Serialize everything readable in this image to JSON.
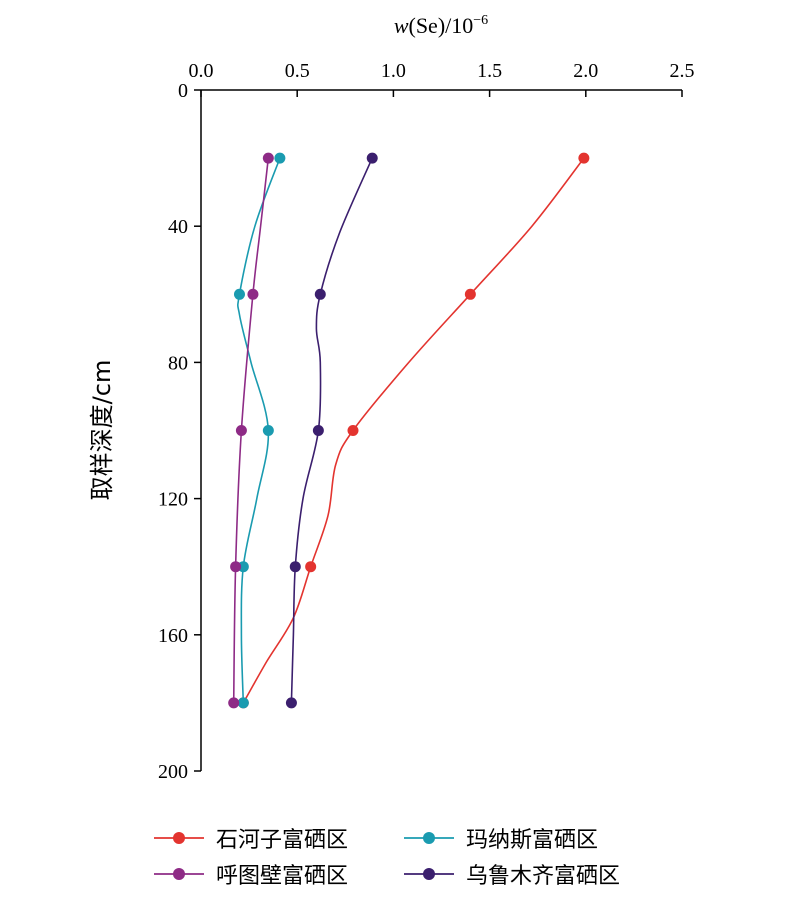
{
  "chart_data": {
    "type": "line",
    "orientation": "depth-profile",
    "title": "",
    "xlabel_main": "w",
    "xlabel_rest": "(Se)/10",
    "xlabel_sup": "−6",
    "ylabel": "取样深度/cm",
    "xlim": [
      0,
      2.5
    ],
    "ylim": [
      0,
      200
    ],
    "y_inverted": true,
    "x_axis_position": "top",
    "x_ticks": [
      "0.0",
      "0.5",
      "1.0",
      "1.5",
      "2.0",
      "2.5"
    ],
    "y_ticks": [
      "0",
      "40",
      "80",
      "120",
      "160",
      "200"
    ],
    "grid": false,
    "legend_position": "bottom",
    "series": [
      {
        "name": "石河子富硒区",
        "color": "#e3342f",
        "points": [
          {
            "depth": 20,
            "value": 1.99
          },
          {
            "depth": 60,
            "value": 1.4
          },
          {
            "depth": 100,
            "value": 0.79
          },
          {
            "depth": 140,
            "value": 0.57
          },
          {
            "depth": 180,
            "value": 0.22
          }
        ],
        "curve": [
          [
            1.99,
            20
          ],
          [
            1.72,
            40
          ],
          [
            1.4,
            60
          ],
          [
            1.08,
            80
          ],
          [
            0.79,
            100
          ],
          [
            0.7,
            110
          ],
          [
            0.66,
            125
          ],
          [
            0.57,
            140
          ],
          [
            0.48,
            155
          ],
          [
            0.34,
            168
          ],
          [
            0.22,
            180
          ]
        ]
      },
      {
        "name": "玛纳斯富硒区",
        "color": "#1a9bb0",
        "points": [
          {
            "depth": 20,
            "value": 0.41
          },
          {
            "depth": 60,
            "value": 0.2
          },
          {
            "depth": 100,
            "value": 0.35
          },
          {
            "depth": 140,
            "value": 0.22
          },
          {
            "depth": 180,
            "value": 0.22
          }
        ],
        "curve": [
          [
            0.41,
            20
          ],
          [
            0.28,
            40
          ],
          [
            0.2,
            60
          ],
          [
            0.2,
            66
          ],
          [
            0.26,
            80
          ],
          [
            0.35,
            100
          ],
          [
            0.29,
            120
          ],
          [
            0.22,
            140
          ],
          [
            0.21,
            160
          ],
          [
            0.22,
            180
          ]
        ]
      },
      {
        "name": "呼图壁富硒区",
        "color": "#8e2b86",
        "points": [
          {
            "depth": 20,
            "value": 0.35
          },
          {
            "depth": 60,
            "value": 0.27
          },
          {
            "depth": 100,
            "value": 0.21
          },
          {
            "depth": 140,
            "value": 0.18
          },
          {
            "depth": 180,
            "value": 0.17
          }
        ],
        "curve": [
          [
            0.35,
            20
          ],
          [
            0.31,
            40
          ],
          [
            0.27,
            60
          ],
          [
            0.21,
            100
          ],
          [
            0.18,
            140
          ],
          [
            0.17,
            180
          ]
        ]
      },
      {
        "name": "乌鲁木齐富硒区",
        "color": "#3b1f6e",
        "points": [
          {
            "depth": 20,
            "value": 0.89
          },
          {
            "depth": 60,
            "value": 0.62
          },
          {
            "depth": 100,
            "value": 0.61
          },
          {
            "depth": 140,
            "value": 0.49
          },
          {
            "depth": 180,
            "value": 0.47
          }
        ],
        "curve": [
          [
            0.89,
            20
          ],
          [
            0.72,
            42
          ],
          [
            0.62,
            60
          ],
          [
            0.6,
            70
          ],
          [
            0.62,
            80
          ],
          [
            0.61,
            100
          ],
          [
            0.53,
            120
          ],
          [
            0.49,
            140
          ],
          [
            0.48,
            160
          ],
          [
            0.47,
            180
          ]
        ]
      }
    ]
  }
}
